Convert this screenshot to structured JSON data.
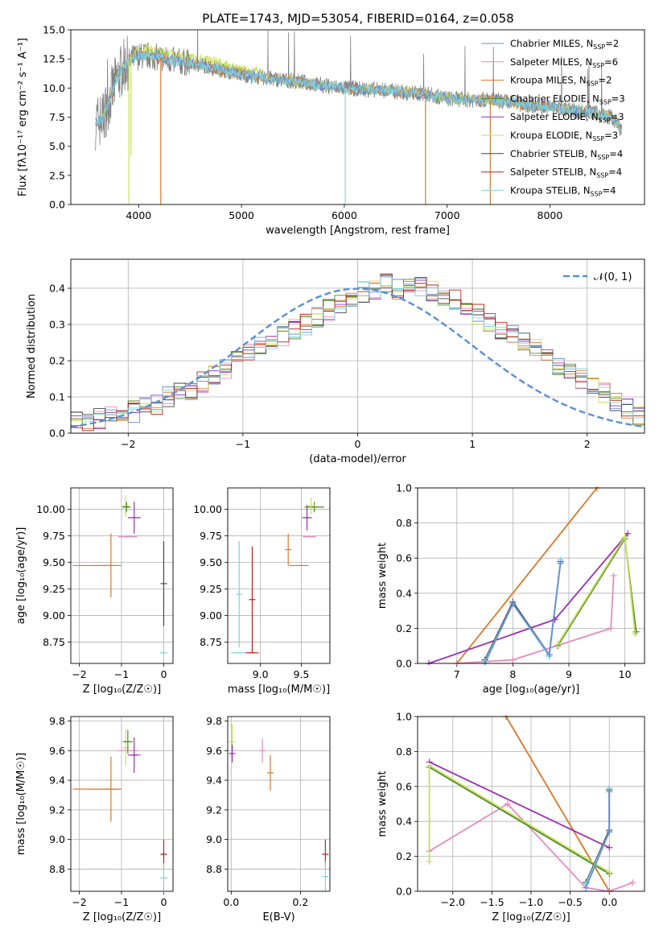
{
  "figure": {
    "title": "PLATE=1743, MJD=53054, FIBERID=0164, z=0.058"
  },
  "colors": {
    "chabrier_miles": "#6a8fd6",
    "salpeter_miles": "#e58ac0",
    "kroupa_miles": "#d8782a",
    "chabrier_elodie": "#4f8a2a",
    "salpeter_elodie": "#9a2fb5",
    "kroupa_elodie": "#c8e05a",
    "chabrier_stelib": "#444444",
    "salpeter_stelib": "#c0201c",
    "kroupa_stelib": "#7fd3de",
    "data": "#808080",
    "normal": "#5a8fd6"
  },
  "legend": [
    {
      "label": "Chabrier MILES, N",
      "sub": "SSP",
      "suffix": "=2",
      "color": "chabrier_miles"
    },
    {
      "label": "Salpeter MILES, N",
      "sub": "SSP",
      "suffix": "=6",
      "color": "salpeter_miles"
    },
    {
      "label": "Kroupa MILES, N",
      "sub": "SSP",
      "suffix": "=2",
      "color": "kroupa_miles"
    },
    {
      "label": "Chabrier ELODIE, N",
      "sub": "SSP",
      "suffix": "=3",
      "color": "chabrier_elodie"
    },
    {
      "label": "Salpeter ELODIE, N",
      "sub": "SSP",
      "suffix": "=3",
      "color": "salpeter_elodie"
    },
    {
      "label": "Kroupa ELODIE, N",
      "sub": "SSP",
      "suffix": "=3",
      "color": "kroupa_elodie"
    },
    {
      "label": "Chabrier STELIB, N",
      "sub": "SSP",
      "suffix": "=4",
      "color": "chabrier_stelib"
    },
    {
      "label": "Salpeter STELIB, N",
      "sub": "SSP",
      "suffix": "=4",
      "color": "salpeter_stelib"
    },
    {
      "label": "Kroupa STELIB, N",
      "sub": "SSP",
      "suffix": "=4",
      "color": "kroupa_stelib"
    }
  ],
  "hist_legend": "𝒩(0, 1)",
  "chart_data": [
    {
      "id": "spectrum",
      "type": "line",
      "xlabel": "wavelength [Angstrom, rest frame]",
      "ylabel": "Flux [f",
      "ylabel_full": "Flux [fλ10⁻¹⁷ erg cm⁻² s⁻¹ A⁻¹]",
      "xlim": [
        3340,
        8920
      ],
      "ylim": [
        0,
        15
      ],
      "xticks": [
        4000,
        5000,
        6000,
        7000,
        8000
      ],
      "yticks": [
        0.0,
        2.5,
        5.0,
        7.5,
        10.0,
        12.5,
        15.0
      ],
      "continuum": {
        "x": [
          3580,
          3650,
          3700,
          3780,
          3850,
          3950,
          4050,
          4150,
          4300,
          4450,
          4600,
          4800,
          5000,
          5200,
          5400,
          5600,
          5800,
          6000,
          6200,
          6400,
          6600,
          6800,
          7000,
          7200,
          7400,
          7600,
          7800,
          8000,
          8200,
          8400,
          8600,
          8700
        ],
        "y": [
          7.0,
          7.4,
          8.6,
          10.6,
          11.8,
          12.6,
          12.8,
          12.7,
          12.4,
          12.2,
          12.0,
          11.6,
          11.2,
          10.9,
          10.7,
          10.5,
          10.2,
          10.0,
          9.9,
          9.8,
          9.6,
          9.5,
          9.1,
          9.0,
          9.0,
          8.8,
          8.5,
          8.4,
          8.1,
          7.9,
          7.5,
          6.4
        ]
      },
      "model_dips": [
        {
          "x": 3925,
          "y": 4.2,
          "color": "kroupa_elodie"
        },
        {
          "x": 3905,
          "y": 0.0,
          "color": "kroupa_elodie"
        },
        {
          "x": 4215,
          "y": 0.0,
          "color": "kroupa_miles"
        },
        {
          "x": 6010,
          "y": 0.0,
          "color": "kroupa_stelib"
        },
        {
          "x": 6790,
          "y": 0.0,
          "color": "kroupa_miles"
        },
        {
          "x": 7420,
          "y": 0.0,
          "color": "kroupa_miles"
        }
      ]
    },
    {
      "id": "residuals",
      "type": "histogram",
      "xlabel": "(data-model)/error",
      "ylabel": "Normed distribution",
      "xlim": [
        -2.5,
        2.5
      ],
      "ylim": [
        0,
        0.48
      ],
      "xticks": [
        -2,
        -1,
        0,
        1,
        2
      ],
      "yticks": [
        0.0,
        0.1,
        0.2,
        0.3,
        0.4
      ],
      "bin_width": 0.1,
      "bin_start": -2.5,
      "heights": [
        0.04,
        0.03,
        0.04,
        0.05,
        0.05,
        0.06,
        0.07,
        0.08,
        0.1,
        0.11,
        0.12,
        0.14,
        0.16,
        0.18,
        0.2,
        0.22,
        0.24,
        0.25,
        0.27,
        0.29,
        0.3,
        0.32,
        0.34,
        0.36,
        0.38,
        0.39,
        0.4,
        0.41,
        0.4,
        0.4,
        0.4,
        0.39,
        0.38,
        0.37,
        0.35,
        0.33,
        0.31,
        0.29,
        0.27,
        0.25,
        0.23,
        0.21,
        0.19,
        0.17,
        0.15,
        0.13,
        0.11,
        0.09,
        0.07,
        0.05
      ],
      "normal_mu": 0,
      "normal_sigma": 1
    },
    {
      "id": "age-vs-Z",
      "type": "scatter",
      "xlabel": "Z [log",
      "xlabel_full": "Z [log₁₀(Z/Z☉)]",
      "ylabel": "age  [log₁₀(age/yr)]",
      "xlim": [
        -2.2,
        0.22
      ],
      "ylim": [
        8.55,
        10.2
      ],
      "xticks": [
        -2,
        -1,
        0
      ],
      "yticks": [
        8.75,
        9.0,
        9.25,
        9.5,
        9.75,
        10.0
      ],
      "points": [
        {
          "x": -1.6,
          "y": 9.47,
          "xerr": 0.55,
          "yerr": 0.0,
          "color": "kroupa_miles"
        },
        {
          "x": -1.25,
          "y": 9.47,
          "xerr": 0.25,
          "yerr": 0.3,
          "color": "kroupa_miles"
        },
        {
          "x": -0.85,
          "y": 9.74,
          "xerr": 0.22,
          "yerr": 0.0,
          "color": "salpeter_miles"
        },
        {
          "x": -0.9,
          "y": 10.03,
          "xerr": 0.08,
          "yerr": 0.1,
          "color": "kroupa_elodie"
        },
        {
          "x": -0.88,
          "y": 10.02,
          "xerr": 0.1,
          "yerr": 0.05,
          "color": "chabrier_elodie"
        },
        {
          "x": -0.7,
          "y": 9.92,
          "xerr": 0.15,
          "yerr": 0.15,
          "color": "salpeter_elodie"
        },
        {
          "x": 0.0,
          "y": 8.65,
          "xerr": 0.08,
          "yerr": 0.0,
          "color": "kroupa_stelib"
        },
        {
          "x": 0.0,
          "y": 9.3,
          "xerr": 0.0,
          "yerr": 0.4,
          "color": "chabrier_stelib"
        }
      ]
    },
    {
      "id": "age-vs-mass",
      "type": "scatter",
      "xlabel": "mass [log₁₀(M/M☉)]",
      "ylabel": "",
      "xlim": [
        8.6,
        9.85
      ],
      "ylim": [
        8.55,
        10.2
      ],
      "xticks": [
        9.0,
        9.5
      ],
      "yticks": [
        8.75,
        9.0,
        9.25,
        9.5,
        9.75,
        10.0
      ],
      "points": [
        {
          "x": 8.74,
          "y": 8.65,
          "xerr": 0.1,
          "yerr": 0.0,
          "color": "kroupa_stelib"
        },
        {
          "x": 8.74,
          "y": 9.2,
          "xerr": 0.0,
          "yerr": 0.5,
          "color": "kroupa_stelib"
        },
        {
          "x": 8.9,
          "y": 8.65,
          "xerr": 0.08,
          "yerr": 0.0,
          "color": "salpeter_stelib"
        },
        {
          "x": 8.9,
          "y": 9.15,
          "xerr": 0.0,
          "yerr": 0.5,
          "color": "salpeter_stelib"
        },
        {
          "x": 9.34,
          "y": 9.62,
          "xerr": 0.0,
          "yerr": 0.15,
          "color": "kroupa_miles"
        },
        {
          "x": 9.47,
          "y": 9.47,
          "xerr": 0.12,
          "yerr": 0.0,
          "color": "kroupa_miles"
        },
        {
          "x": 9.6,
          "y": 9.74,
          "xerr": 0.08,
          "yerr": 0.0,
          "color": "salpeter_miles"
        },
        {
          "x": 9.57,
          "y": 9.92,
          "xerr": 0.06,
          "yerr": 0.12,
          "color": "salpeter_elodie"
        },
        {
          "x": 9.66,
          "y": 10.02,
          "xerr": 0.12,
          "yerr": 0.05,
          "color": "chabrier_elodie"
        },
        {
          "x": 9.62,
          "y": 10.03,
          "xerr": 0.05,
          "yerr": 0.08,
          "color": "kroupa_elodie"
        }
      ]
    },
    {
      "id": "weight-vs-age",
      "type": "line",
      "xlabel": "age  [log₁₀(age/yr)]",
      "ylabel": "mass weight",
      "xlim": [
        6.3,
        10.35
      ],
      "ylim": [
        0,
        1.0
      ],
      "xticks": [
        7,
        8,
        9,
        10
      ],
      "yticks": [
        0.0,
        0.2,
        0.4,
        0.6,
        0.8,
        1.0
      ],
      "series": [
        {
          "color": "kroupa_miles",
          "x": [
            7.0,
            9.5
          ],
          "y": [
            0.0,
            1.0
          ]
        },
        {
          "color": "salpeter_elodie",
          "x": [
            6.5,
            8.75,
            10.05
          ],
          "y": [
            0.0,
            0.25,
            0.74
          ]
        },
        {
          "color": "salpeter_miles",
          "x": [
            7.0,
            8.0,
            9.75,
            9.8
          ],
          "y": [
            0.0,
            0.02,
            0.2,
            0.5
          ]
        },
        {
          "color": "chabrier_elodie",
          "x": [
            8.8,
            10.0,
            10.2
          ],
          "y": [
            0.1,
            0.71,
            0.18
          ]
        },
        {
          "color": "kroupa_elodie",
          "x": [
            8.8,
            10.0,
            10.18
          ],
          "y": [
            0.11,
            0.72,
            0.17
          ]
        },
        {
          "color": "chabrier_stelib",
          "x": [
            7.5,
            8.0,
            8.65,
            8.85
          ],
          "y": [
            0.02,
            0.35,
            0.05,
            0.58
          ]
        },
        {
          "color": "kroupa_stelib",
          "x": [
            7.5,
            8.0,
            8.65,
            8.85
          ],
          "y": [
            0.01,
            0.34,
            0.04,
            0.59
          ]
        },
        {
          "color": "chabrier_miles",
          "x": [
            7.5,
            8.0,
            8.65,
            8.85
          ],
          "y": [
            0.0,
            0.34,
            0.05,
            0.57
          ]
        }
      ]
    },
    {
      "id": "mass-vs-Z",
      "type": "scatter",
      "xlabel": "Z [log₁₀(Z/Z☉)]",
      "ylabel": "mass [log₁₀(M/M☉)]",
      "xlim": [
        -2.2,
        0.22
      ],
      "ylim": [
        8.65,
        9.83
      ],
      "xticks": [
        -2,
        -1,
        0
      ],
      "yticks": [
        8.8,
        9.0,
        9.2,
        9.4,
        9.6,
        9.8
      ],
      "points": [
        {
          "x": -1.6,
          "y": 9.34,
          "xerr": 0.55,
          "yerr": 0.0,
          "color": "kroupa_miles"
        },
        {
          "x": -1.25,
          "y": 9.34,
          "xerr": 0.25,
          "yerr": 0.22,
          "color": "kroupa_miles"
        },
        {
          "x": -0.85,
          "y": 9.6,
          "xerr": 0.25,
          "yerr": 0.0,
          "color": "salpeter_miles"
        },
        {
          "x": -0.9,
          "y": 9.62,
          "xerr": 0.08,
          "yerr": 0.12,
          "color": "kroupa_elodie"
        },
        {
          "x": -0.85,
          "y": 9.66,
          "xerr": 0.12,
          "yerr": 0.08,
          "color": "chabrier_elodie"
        },
        {
          "x": -0.7,
          "y": 9.57,
          "xerr": 0.15,
          "yerr": 0.12,
          "color": "salpeter_elodie"
        },
        {
          "x": 0.0,
          "y": 8.9,
          "xerr": 0.05,
          "yerr": 0.1,
          "color": "salpeter_stelib"
        },
        {
          "x": 0.0,
          "y": 8.74,
          "xerr": 0.08,
          "yerr": 0.1,
          "color": "kroupa_stelib"
        }
      ]
    },
    {
      "id": "mass-vs-ebv",
      "type": "scatter",
      "xlabel": "E(B-V)",
      "ylabel": "",
      "xlim": [
        -0.01,
        0.285
      ],
      "ylim": [
        8.65,
        9.83
      ],
      "xticks": [
        0.0,
        0.2
      ],
      "yticks": [
        8.8,
        9.0,
        9.2,
        9.4,
        9.6,
        9.8
      ],
      "points": [
        {
          "x": 0.003,
          "y": 9.66,
          "xerr": 0.0,
          "yerr": 0.12,
          "color": "kroupa_elodie"
        },
        {
          "x": 0.003,
          "y": 9.58,
          "xerr": 0.0,
          "yerr": 0.06,
          "color": "salpeter_elodie"
        },
        {
          "x": 0.09,
          "y": 9.6,
          "xerr": 0.0,
          "yerr": 0.08,
          "color": "salpeter_miles"
        },
        {
          "x": 0.113,
          "y": 9.45,
          "xerr": 0.0,
          "yerr": 0.12,
          "color": "kroupa_miles"
        },
        {
          "x": 0.272,
          "y": 8.9,
          "xerr": 0.0,
          "yerr": 0.1,
          "color": "salpeter_stelib"
        },
        {
          "x": 0.272,
          "y": 8.75,
          "xerr": 0.0,
          "yerr": 0.1,
          "color": "kroupa_stelib"
        }
      ]
    },
    {
      "id": "weight-vs-Z",
      "type": "line",
      "xlabel": "Z [log₁₀(Z/Z☉)]",
      "ylabel": "mass weight",
      "xlim": [
        -2.45,
        0.45
      ],
      "ylim": [
        0,
        1.0
      ],
      "xticks": [
        -2.0,
        -1.5,
        -1.0,
        -0.5,
        0.0
      ],
      "yticks": [
        0.0,
        0.2,
        0.4,
        0.6,
        0.8,
        1.0
      ],
      "series": [
        {
          "color": "kroupa_miles",
          "x": [
            -1.32,
            0.0
          ],
          "y": [
            1.0,
            0.0
          ]
        },
        {
          "color": "salpeter_elodie",
          "x": [
            -2.3,
            0.0
          ],
          "y": [
            0.74,
            0.25
          ]
        },
        {
          "color": "salpeter_miles",
          "x": [
            -2.3,
            -1.3,
            -0.3,
            0.0,
            0.3
          ],
          "y": [
            0.23,
            0.5,
            0.02,
            0.0,
            0.05
          ]
        },
        {
          "color": "chabrier_elodie",
          "x": [
            -2.3,
            0.0
          ],
          "y": [
            0.71,
            0.1
          ]
        },
        {
          "color": "kroupa_elodie",
          "x": [
            -2.3,
            -2.3,
            0.0
          ],
          "y": [
            0.17,
            0.72,
            0.11
          ]
        },
        {
          "color": "chabrier_stelib",
          "x": [
            -0.3,
            0.0,
            0.0
          ],
          "y": [
            0.05,
            0.35,
            0.58
          ]
        },
        {
          "color": "kroupa_stelib",
          "x": [
            -0.3,
            0.0,
            0.0
          ],
          "y": [
            0.04,
            0.34,
            0.59
          ]
        },
        {
          "color": "chabrier_miles",
          "x": [
            -0.3,
            0.0,
            0.0
          ],
          "y": [
            0.02,
            0.34,
            0.57
          ]
        }
      ]
    }
  ]
}
